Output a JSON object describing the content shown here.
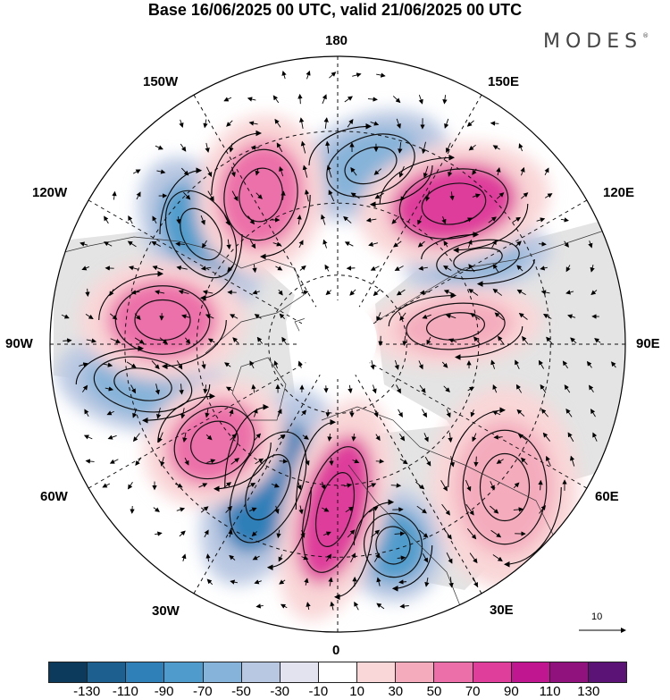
{
  "title": "Base 16/06/2025 00 UTC, valid 21/06/2025 00 UTC",
  "brand": "MODES",
  "brand_mark": "®",
  "longitude_labels": {
    "lon_180": "180",
    "lon_150e": "150E",
    "lon_120e": "120E",
    "lon_90e": "90E",
    "lon_60e": "60E",
    "lon_30e": "30E",
    "lon_0": "0",
    "lon_30w": "30W",
    "lon_60w": "60W",
    "lon_90w": "90W",
    "lon_120w": "120W",
    "lon_150w": "150W"
  },
  "reference_vector_label": "10",
  "colorbar": {
    "colors": [
      "#0b3a5c",
      "#1d5f8f",
      "#2f7fb8",
      "#4f9ccc",
      "#86b3d9",
      "#b9c8e2",
      "#e3e3f0",
      "#ffffff",
      "#f9d6d7",
      "#f4acbd",
      "#ec6fa9",
      "#df3e9b",
      "#c0168f",
      "#90127d",
      "#5b1375"
    ],
    "tick_labels": [
      "-130",
      "-110",
      "-90",
      "-70",
      "-50",
      "-30",
      "-10",
      "10",
      "30",
      "50",
      "70",
      "90",
      "110",
      "130"
    ]
  },
  "anomaly_centers": [
    {
      "sign": "negative",
      "strength": 50
    },
    {
      "sign": "negative",
      "strength": 70
    },
    {
      "sign": "negative",
      "strength": 50
    },
    {
      "sign": "negative",
      "strength": 50
    },
    {
      "sign": "negative",
      "strength": 90
    },
    {
      "sign": "negative",
      "strength": 70
    },
    {
      "sign": "positive",
      "strength": 70
    },
    {
      "sign": "positive",
      "strength": 90
    },
    {
      "sign": "positive",
      "strength": 70
    },
    {
      "sign": "positive",
      "strength": 50
    },
    {
      "sign": "positive",
      "strength": 70
    },
    {
      "sign": "positive",
      "strength": 90
    },
    {
      "sign": "positive",
      "strength": 30
    }
  ]
}
